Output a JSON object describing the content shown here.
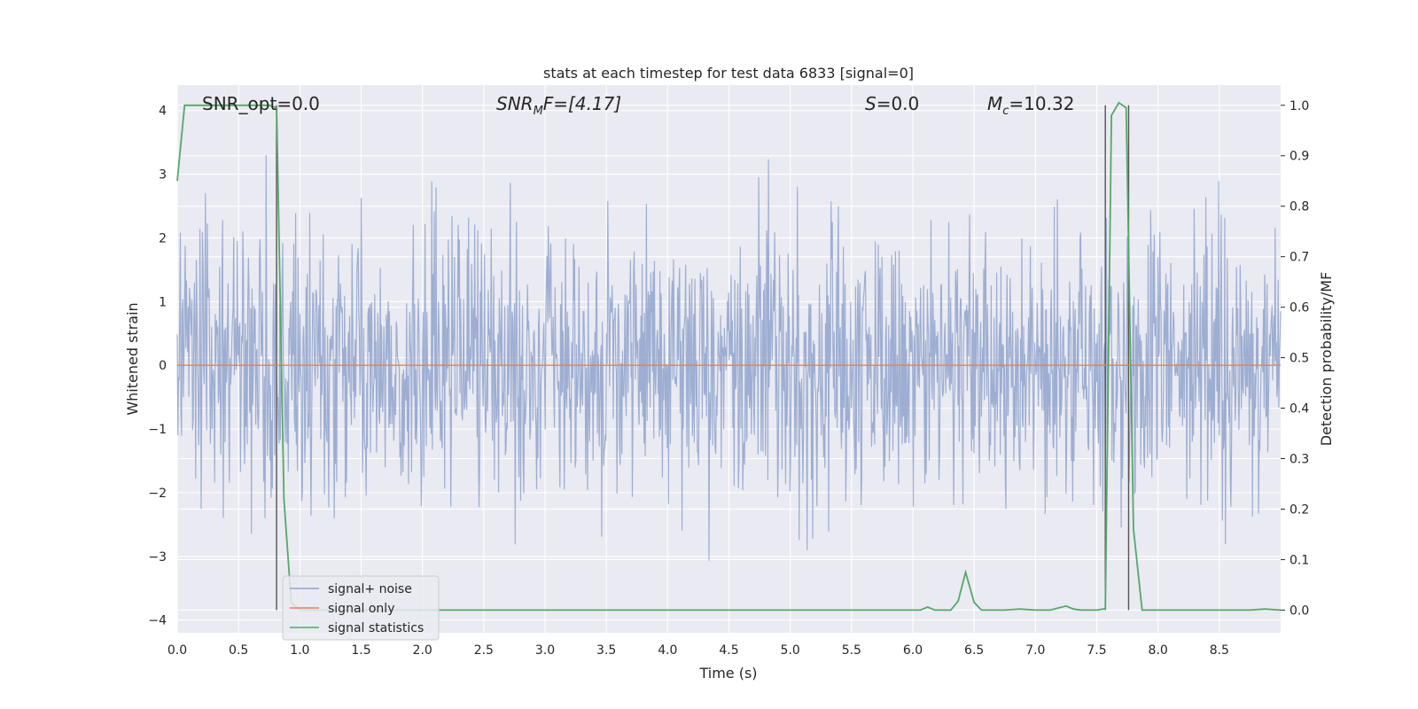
{
  "chart_data": {
    "type": "line",
    "title": "stats at each timestep for test data 6833 [signal=0]",
    "xlabel": "Time (s)",
    "ylabel": "Whitened strain",
    "ylabel_right": "Detection probability/MF",
    "xlim": [
      0.0,
      9.0
    ],
    "ylim": [
      -4.2,
      4.4
    ],
    "ylim_right": [
      -0.045,
      1.04
    ],
    "x_ticks": [
      0.0,
      0.5,
      1.0,
      1.5,
      2.0,
      2.5,
      3.0,
      3.5,
      4.0,
      4.5,
      5.0,
      5.5,
      6.0,
      6.5,
      7.0,
      7.5,
      8.0,
      8.5
    ],
    "x_tick_labels": [
      "0.0",
      "0.5",
      "1.0",
      "1.5",
      "2.0",
      "2.5",
      "3.0",
      "3.5",
      "4.0",
      "4.5",
      "5.0",
      "5.5",
      "6.0",
      "6.5",
      "7.0",
      "7.5",
      "8.0",
      "8.5"
    ],
    "y_ticks": [
      4,
      3,
      2,
      1,
      0,
      -1,
      -2,
      -3,
      -4
    ],
    "y_tick_labels": [
      "4",
      "3",
      "2",
      "1",
      "0",
      "−1",
      "−2",
      "−3",
      "−4"
    ],
    "y_right_ticks": [
      1.0,
      0.9,
      0.8,
      0.7,
      0.6,
      0.5,
      0.4,
      0.3,
      0.2,
      0.1,
      0.0
    ],
    "y_right_tick_labels": [
      "1.0",
      "0.9",
      "0.8",
      "0.7",
      "0.6",
      "0.5",
      "0.4",
      "0.3",
      "0.2",
      "0.1",
      "0.0"
    ],
    "grid": true,
    "legend_position": "lower-left",
    "annotations": {
      "snr_opt": "SNR_opt=0.0",
      "snr_mf_prefix": "SNR",
      "snr_mf_sub": "M",
      "snr_mf_suffix": "F=[4.17]",
      "s_prefix": "S",
      "s_suffix": "=0.0",
      "mc_prefix": "M",
      "mc_sub": "c",
      "mc_suffix": "=10.32"
    },
    "vertical_lines": [
      0.81,
      7.57,
      7.76
    ],
    "series": [
      {
        "name": "signal+ noise",
        "color": "#8fa3cc",
        "axis": "left",
        "representation": "dense noise trace",
        "sample_count": 1800,
        "typical_range": [
          -1.6,
          1.9
        ],
        "peak_max": 3.45,
        "peak_min": -3.75
      },
      {
        "name": "signal only",
        "color": "#dd8452",
        "axis": "left",
        "x": [
          0.0,
          9.0
        ],
        "y": [
          0.0,
          0.0
        ]
      },
      {
        "name": "signal statistics",
        "color": "#55a868",
        "axis": "right",
        "x": [
          0.0,
          0.06,
          0.12,
          0.5,
          0.75,
          0.81,
          0.87,
          0.93,
          1.0,
          1.5,
          2.0,
          2.5,
          3.0,
          3.5,
          4.0,
          4.5,
          5.0,
          5.5,
          6.0,
          6.06,
          6.12,
          6.18,
          6.25,
          6.31,
          6.37,
          6.43,
          6.5,
          6.56,
          6.62,
          6.75,
          6.87,
          7.0,
          7.12,
          7.25,
          7.31,
          7.37,
          7.5,
          7.57,
          7.62,
          7.68,
          7.74,
          7.8,
          7.87,
          8.0,
          8.5,
          8.75,
          8.87,
          9.0
        ],
        "y": [
          0.85,
          1.0,
          1.0,
          1.0,
          1.0,
          0.995,
          0.22,
          0.015,
          0.0,
          0.0,
          0.0,
          0.0,
          0.0,
          0.0,
          0.0,
          0.0,
          0.0,
          0.0,
          0.0,
          0.0,
          0.006,
          0.0,
          0.0,
          0.0,
          0.018,
          0.075,
          0.015,
          0.0,
          0.0,
          0.0,
          0.002,
          0.0,
          0.0,
          0.008,
          0.002,
          0.0,
          0.0,
          0.003,
          0.98,
          1.005,
          0.995,
          0.16,
          0.0,
          0.0,
          0.0,
          0.0,
          0.002,
          0.0
        ]
      }
    ]
  }
}
